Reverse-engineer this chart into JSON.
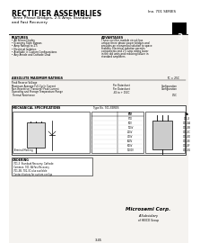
{
  "title": "RECTIFIER ASSEMBLIES",
  "subtitle1": "Three Phase Bridges, 2.5 Amp, Standard",
  "subtitle2": "and Fast Recovery",
  "part_no_label": "Ino. 701 SERIES",
  "section_num": "3",
  "bg_color": "#e8e5e0",
  "page_bg": "#f5f3f0",
  "features_title": "FEATURES",
  "features": [
    "All Silicon Diodes",
    "Economy Style Bypass",
    "Amp Ratings to 2.5",
    "Electrical Isolation",
    "Available in Custom Configurations",
    "Any Anode and Cathode Lead"
  ],
  "advantages_title": "ADVANTAGES",
  "advantages": [
    "These rectifier module circuit has",
    "unique three phase power bridges and",
    "provides an economical solution to space",
    "stability. Electrical isolation permits",
    "components and 2.5 amp rating lower",
    "in the old units and reducing failure in",
    "standard amplifiers."
  ],
  "abs_max_title": "ABSOLUTE MAXIMUM RATINGS",
  "abs_max_note": "TC = 25C",
  "mech_title": "MECHANICAL SPECIFICATIONS",
  "ordering_title": "ORDERING",
  "table_items": [
    [
      "701-3",
      "STD"
    ],
    [
      "701-3A",
      "50V"
    ],
    [
      "701-3B",
      "100V"
    ],
    [
      "701-3C",
      "200V"
    ],
    [
      "701-3D",
      "400V"
    ],
    [
      "701-3E",
      "600V"
    ],
    [
      "701-3F",
      "800V"
    ],
    [
      "701-3G",
      "1000V"
    ]
  ],
  "company": "Microsemi Corp.",
  "company_sub": "A Subsidiary",
  "company_sub2": "of HEICO Group",
  "page_num": "3-45"
}
